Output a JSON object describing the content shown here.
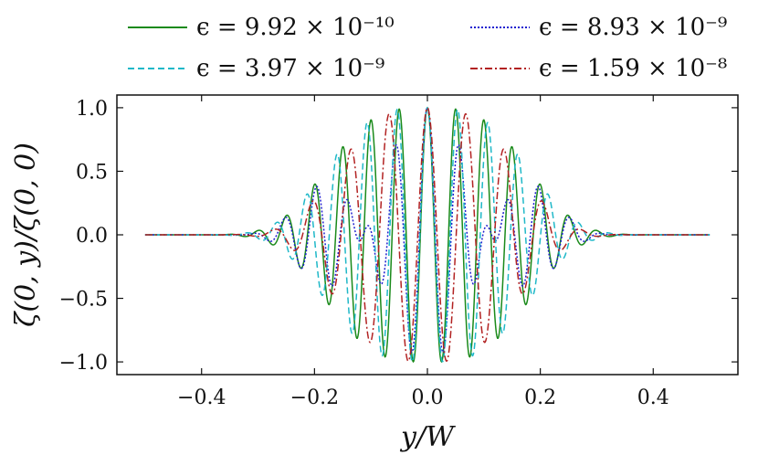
{
  "chart_data": {
    "type": "line",
    "xlabel": "y/W",
    "ylabel": "ζ(0, y)/ζ(0, 0)",
    "xlim": [
      -0.55,
      0.55
    ],
    "ylim": [
      -1.1,
      1.1
    ],
    "xticks": [
      -0.4,
      -0.2,
      0.0,
      0.2,
      0.4
    ],
    "xtick_labels": [
      "−0.4",
      "−0.2",
      "0.0",
      "0.2",
      "0.4"
    ],
    "yticks": [
      -1.0,
      -0.5,
      0.0,
      0.5,
      1.0
    ],
    "ytick_labels": [
      "−1.0",
      "−0.5",
      "0.0",
      "0.5",
      "1.0"
    ],
    "grid": false,
    "legend_placement": "top, above plot, two columns",
    "x_range": [
      -0.5,
      0.5
    ],
    "series": [
      {
        "name": "ϵ = 9.92 × 10⁻¹⁰",
        "color": "#1a8a1a",
        "dash": "solid",
        "envelope_width": 0.205,
        "envelope_power": 3.2,
        "frequency": 20.0,
        "parity": "even"
      },
      {
        "name": "ϵ = 8.93 × 10⁻⁹",
        "color": "#1f1fcf",
        "dash": "dotted",
        "envelope_width": 0.205,
        "envelope_power": 3.2,
        "frequency": 17.8,
        "parity": "odd"
      },
      {
        "name": "ϵ = 3.97 × 10⁻⁹",
        "color": "#1fb8c8",
        "dash": "dashed",
        "envelope_width": 0.205,
        "envelope_power": 3.2,
        "frequency": 18.7,
        "parity": "even"
      },
      {
        "name": "ϵ = 1.59 × 10⁻⁸",
        "color": "#b22222",
        "dash": "dashdot",
        "envelope_width": 0.185,
        "envelope_power": 3.0,
        "frequency": 14.7,
        "parity": "even"
      }
    ]
  }
}
